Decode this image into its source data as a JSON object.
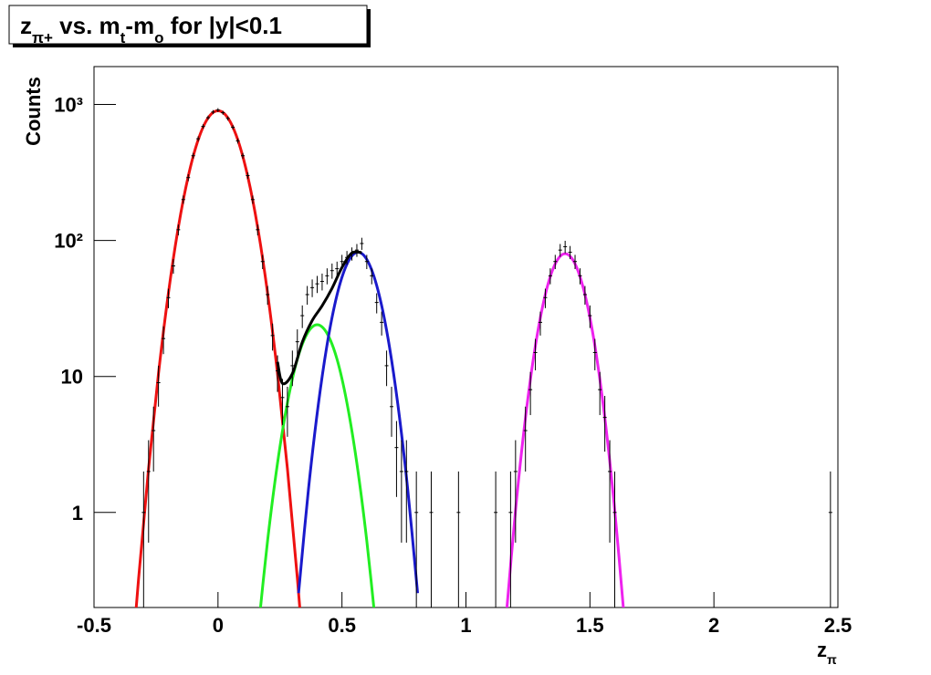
{
  "chart_data": {
    "type": "line",
    "title": [
      "z",
      "π+",
      " vs. m",
      "t",
      "-m",
      "o",
      " for |y|<0.1"
    ],
    "title_sub": [
      false,
      true,
      false,
      true,
      false,
      true,
      false
    ],
    "ylabel": "Counts",
    "xlabel": [
      "z",
      "π"
    ],
    "xlabel_sub": [
      false,
      true
    ],
    "xlim": [
      -0.5,
      2.5
    ],
    "ylim": [
      0.2,
      1900
    ],
    "log_y": true,
    "xticks": [
      -0.5,
      0,
      0.5,
      1,
      1.5,
      2,
      2.5
    ],
    "yticks": [
      1,
      10,
      {
        "value": 100,
        "label": "10²"
      },
      {
        "value": 1000,
        "label": "10³"
      }
    ],
    "points": {
      "color": "#000000",
      "x": [
        -0.3,
        -0.28,
        -0.26,
        -0.24,
        -0.22,
        -0.2,
        -0.18,
        -0.16,
        -0.14,
        -0.12,
        -0.1,
        -0.08,
        -0.06,
        -0.04,
        -0.02,
        0,
        0.02,
        0.04,
        0.06,
        0.08,
        0.1,
        0.12,
        0.14,
        0.16,
        0.18,
        0.2,
        0.22,
        0.24,
        0.26,
        0.28,
        0.3,
        0.32,
        0.34,
        0.36,
        0.38,
        0.4,
        0.42,
        0.44,
        0.46,
        0.48,
        0.5,
        0.52,
        0.54,
        0.56,
        0.58,
        0.6,
        0.62,
        0.64,
        0.66,
        0.68,
        0.7,
        0.72,
        0.74,
        0.76,
        0.8,
        0.86,
        0.97,
        1.12,
        1.18,
        1.2,
        1.24,
        1.26,
        1.28,
        1.3,
        1.32,
        1.34,
        1.36,
        1.38,
        1.4,
        1.42,
        1.44,
        1.46,
        1.48,
        1.5,
        1.52,
        1.54,
        1.56,
        1.58,
        1.6,
        2.47
      ],
      "values": [
        1,
        2,
        4,
        9,
        19,
        38,
        65,
        120,
        200,
        290,
        420,
        560,
        690,
        800,
        880,
        910,
        870,
        790,
        680,
        540,
        420,
        300,
        200,
        120,
        70,
        40,
        20,
        11,
        7,
        6,
        12,
        18,
        28,
        40,
        45,
        48,
        50,
        55,
        60,
        62,
        70,
        75,
        80,
        85,
        95,
        70,
        55,
        35,
        25,
        12,
        6,
        3,
        2,
        2,
        1,
        1,
        1,
        1,
        1,
        2,
        4,
        8,
        15,
        25,
        38,
        55,
        70,
        85,
        90,
        82,
        70,
        55,
        40,
        28,
        15,
        8,
        5,
        2,
        1,
        1
      ],
      "errors": [
        1,
        1.4,
        2,
        3,
        4.4,
        6.2,
        8.1,
        11,
        14,
        17,
        20,
        24,
        26,
        28,
        30,
        30,
        29,
        28,
        26,
        23,
        20,
        17,
        14,
        11,
        8.4,
        6.3,
        4.5,
        3.3,
        2.6,
        2.4,
        3.5,
        4.2,
        5.3,
        6.3,
        6.7,
        6.9,
        7.1,
        7.4,
        7.7,
        7.9,
        8.4,
        8.7,
        8.9,
        9.2,
        9.7,
        8.4,
        7.4,
        5.9,
        5,
        3.5,
        2.4,
        1.7,
        1.4,
        1.4,
        1,
        1,
        1,
        1,
        1,
        1.4,
        2,
        2.8,
        3.9,
        5,
        6.2,
        7.4,
        8.4,
        9.2,
        9.5,
        9.1,
        8.4,
        7.4,
        6.3,
        5.3,
        3.9,
        2.8,
        2.2,
        1.4,
        1,
        1
      ]
    },
    "series": [
      {
        "color": "#ee1111",
        "x": [
          -0.36,
          -0.32,
          -0.28,
          -0.24,
          -0.2,
          -0.16,
          -0.12,
          -0.08,
          -0.04,
          0,
          0.04,
          0.08,
          0.12,
          0.16,
          0.2,
          0.24,
          0.28,
          0.32,
          0.36
        ],
        "values": [
          0.041,
          0.33,
          2.1,
          10.5,
          41,
          125,
          296,
          549,
          796,
          900,
          796,
          549,
          296,
          125,
          41,
          10.5,
          2.1,
          0.33,
          0.041
        ]
      },
      {
        "color": "#22ee22",
        "x": [
          0.16,
          0.2,
          0.24,
          0.28,
          0.32,
          0.36,
          0.4,
          0.44,
          0.48,
          0.52,
          0.56,
          0.6,
          0.64
        ],
        "values": [
          0.125,
          0.62,
          2.3,
          6.4,
          13.4,
          20.7,
          24,
          20.7,
          13.4,
          6.4,
          2.3,
          0.62,
          0.125
        ]
      },
      {
        "color": "#1a1acc",
        "x": [
          0.325,
          0.365,
          0.405,
          0.445,
          0.485,
          0.525,
          0.565,
          0.605,
          0.645,
          0.685,
          0.725,
          0.765,
          0.805
        ],
        "values": [
          0.255,
          1.49,
          6.3,
          19.4,
          43.2,
          69.9,
          82,
          69.9,
          43.2,
          19.4,
          6.3,
          1.49,
          0.255
        ]
      },
      {
        "color": "#ee22ee",
        "x": [
          1.16,
          1.2,
          1.24,
          1.28,
          1.32,
          1.36,
          1.4,
          1.44,
          1.48,
          1.52,
          1.56,
          1.6,
          1.64
        ],
        "values": [
          0.154,
          1.04,
          4.96,
          16.8,
          40,
          67.3,
          80,
          67.3,
          40,
          16.8,
          4.96,
          1.04,
          0.154
        ]
      },
      {
        "color": "#000000",
        "x": [
          0.24,
          0.26,
          0.3,
          0.34,
          0.38,
          0.42,
          0.46,
          0.5,
          0.54,
          0.58
        ],
        "values": [
          12.8,
          8.9,
          10.5,
          17.9,
          25.8,
          33.1,
          44.5,
          63.3,
          81,
          81.4
        ]
      }
    ]
  }
}
